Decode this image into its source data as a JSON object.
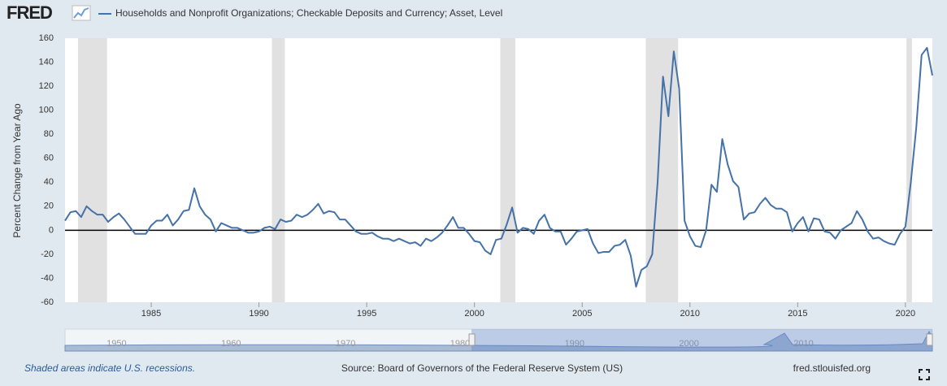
{
  "logo": "FRED",
  "chart_data": {
    "type": "line",
    "y_label": "Percent Change from Year Ago",
    "series": [
      {
        "name": "Households and Nonprofit Organizations; Checkable Deposits and Currency; Asset, Level",
        "color": "#4572a7",
        "values": [
          8,
          15,
          16,
          11,
          20,
          16,
          13,
          13,
          7,
          11,
          14,
          9,
          3,
          -3,
          -3,
          -3,
          4,
          8,
          8,
          13,
          4,
          9,
          16,
          17,
          35,
          20,
          13,
          9,
          -1,
          6,
          4,
          2,
          2,
          0,
          -2,
          -2,
          -1,
          2,
          3,
          1,
          9,
          7,
          8,
          13,
          11,
          13,
          17,
          22,
          14,
          16,
          15,
          9,
          9,
          4,
          -1,
          -3,
          -3,
          -2,
          -5,
          -7,
          -7,
          -9,
          -7,
          -9,
          -11,
          -10,
          -13,
          -7,
          -9,
          -6,
          -2,
          4,
          11,
          2,
          2,
          -3,
          -9,
          -10,
          -17,
          -20,
          -8,
          -7,
          5,
          19,
          -2,
          2,
          1,
          -3,
          8,
          13,
          2,
          -1,
          -1,
          -12,
          -7,
          -1,
          0,
          1,
          -11,
          -19,
          -18,
          -18,
          -13,
          -12,
          -8,
          -21,
          -47,
          -33,
          -30,
          -20,
          40,
          128,
          95,
          149,
          118,
          8,
          -5,
          -13,
          -14,
          0,
          38,
          32,
          76,
          55,
          41,
          36,
          9,
          14,
          15,
          22,
          27,
          21,
          18,
          18,
          15,
          -1,
          6,
          11,
          -1,
          10,
          9,
          -1,
          -2,
          -7,
          0,
          3,
          6,
          16,
          9,
          -1,
          -7,
          -6,
          -9,
          -11,
          -12,
          -3,
          3,
          40,
          85,
          146,
          152,
          129
        ]
      }
    ],
    "x": [
      1981,
      1981.25,
      1981.5,
      1981.75,
      1982,
      1982.25,
      1982.5,
      1982.75,
      1983,
      1983.25,
      1983.5,
      1983.75,
      1984,
      1984.25,
      1984.5,
      1984.75,
      1985,
      1985.25,
      1985.5,
      1985.75,
      1986,
      1986.25,
      1986.5,
      1986.75,
      1987,
      1987.25,
      1987.5,
      1987.75,
      1988,
      1988.25,
      1988.5,
      1988.75,
      1989,
      1989.25,
      1989.5,
      1989.75,
      1990,
      1990.25,
      1990.5,
      1990.75,
      1991,
      1991.25,
      1991.5,
      1991.75,
      1992,
      1992.25,
      1992.5,
      1992.75,
      1993,
      1993.25,
      1993.5,
      1993.75,
      1994,
      1994.25,
      1994.5,
      1994.75,
      1995,
      1995.25,
      1995.5,
      1995.75,
      1996,
      1996.25,
      1996.5,
      1996.75,
      1997,
      1997.25,
      1997.5,
      1997.75,
      1998,
      1998.25,
      1998.5,
      1998.75,
      1999,
      1999.25,
      1999.5,
      1999.75,
      2000,
      2000.25,
      2000.5,
      2000.75,
      2001,
      2001.25,
      2001.5,
      2001.75,
      2002,
      2002.25,
      2002.5,
      2002.75,
      2003,
      2003.25,
      2003.5,
      2003.75,
      2004,
      2004.25,
      2004.5,
      2004.75,
      2005,
      2005.25,
      2005.5,
      2005.75,
      2006,
      2006.25,
      2006.5,
      2006.75,
      2007,
      2007.25,
      2007.5,
      2007.75,
      2008,
      2008.25,
      2008.5,
      2008.75,
      2009,
      2009.25,
      2009.5,
      2009.75,
      2010,
      2010.25,
      2010.5,
      2010.75,
      2011,
      2011.25,
      2011.5,
      2011.75,
      2012,
      2012.25,
      2012.5,
      2012.75,
      2013,
      2013.25,
      2013.5,
      2013.75,
      2014,
      2014.25,
      2014.5,
      2014.75,
      2015,
      2015.25,
      2015.5,
      2015.75,
      2016,
      2016.25,
      2016.5,
      2016.75,
      2017,
      2017.25,
      2017.5,
      2017.75,
      2018,
      2018.25,
      2018.5,
      2018.75,
      2019,
      2019.25,
      2019.5,
      2019.75,
      2020,
      2020.25,
      2020.5,
      2020.75,
      2021,
      2021.25
    ],
    "xlim": [
      1981,
      2021.25
    ],
    "xticks": [
      1985,
      1990,
      1995,
      2000,
      2005,
      2010,
      2015,
      2020
    ],
    "ylim": [
      -60,
      160
    ],
    "yticks": [
      -60,
      -40,
      -20,
      0,
      20,
      40,
      60,
      80,
      100,
      120,
      140,
      160
    ],
    "grid": false,
    "recessions": [
      [
        1981.6,
        1982.95
      ],
      [
        1990.6,
        1991.2
      ],
      [
        2001.2,
        2001.9
      ],
      [
        2007.95,
        2009.45
      ],
      [
        2020.05,
        2020.3
      ]
    ],
    "recession_color": "#e1e1e1",
    "navigator": {
      "xlim": [
        1945.5,
        2021.25
      ],
      "xticks": [
        "1950",
        "1960",
        "1970",
        "1980",
        "1990",
        "2000",
        "2010"
      ],
      "selection": [
        1981,
        2021.25
      ]
    },
    "note": "Shaded areas indicate U.S. recessions.",
    "source": "Source: Board of Governors of the Federal Reserve System (US)",
    "site": "fred.stlouisfed.org"
  }
}
